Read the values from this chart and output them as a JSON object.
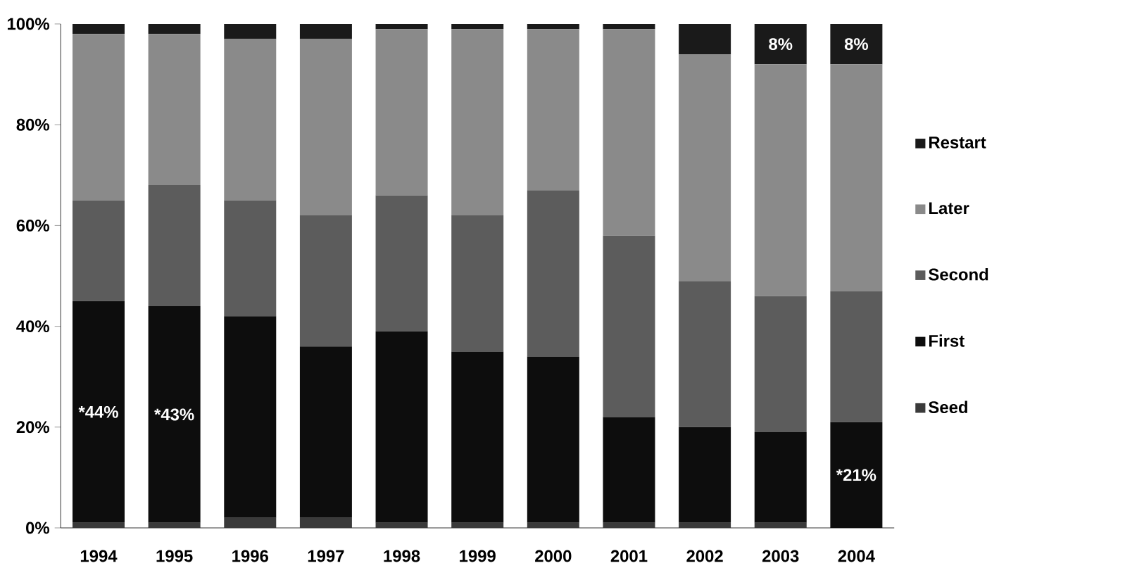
{
  "chart_data": {
    "type": "bar",
    "stacked": true,
    "categories": [
      "1994",
      "1995",
      "1996",
      "1997",
      "1998",
      "1999",
      "2000",
      "2001",
      "2002",
      "2003",
      "2004"
    ],
    "series": [
      {
        "name": "Seed",
        "color": "#3a3a3a",
        "values": [
          1,
          1,
          2,
          2,
          1,
          1,
          1,
          1,
          1,
          1,
          0
        ]
      },
      {
        "name": "First",
        "color": "#0d0d0d",
        "values": [
          44,
          43,
          40,
          34,
          38,
          34,
          33,
          21,
          19,
          18,
          21
        ],
        "value_labels": [
          "*44%",
          "*43%",
          null,
          null,
          null,
          null,
          null,
          null,
          null,
          null,
          "*21%"
        ]
      },
      {
        "name": "Second",
        "color": "#5c5c5c",
        "values": [
          20,
          24,
          23,
          26,
          27,
          27,
          33,
          36,
          29,
          27,
          26
        ]
      },
      {
        "name": "Later",
        "color": "#8a8a8a",
        "values": [
          33,
          30,
          32,
          35,
          33,
          37,
          32,
          41,
          45,
          46,
          45
        ]
      },
      {
        "name": "Restart",
        "color": "#1a1a1a",
        "values": [
          2,
          2,
          3,
          3,
          1,
          1,
          1,
          1,
          6,
          8,
          8
        ],
        "value_labels": [
          null,
          null,
          null,
          null,
          null,
          null,
          null,
          null,
          null,
          "8%",
          "8%"
        ]
      }
    ],
    "ylim": [
      0,
      100
    ],
    "yticks": [
      {
        "value": 0,
        "label": "0%"
      },
      {
        "value": 20,
        "label": "20%"
      },
      {
        "value": 40,
        "label": "40%"
      },
      {
        "value": 60,
        "label": "60%"
      },
      {
        "value": 80,
        "label": "80%"
      },
      {
        "value": 100,
        "label": "100%"
      }
    ],
    "legend": "right",
    "grid": false
  }
}
